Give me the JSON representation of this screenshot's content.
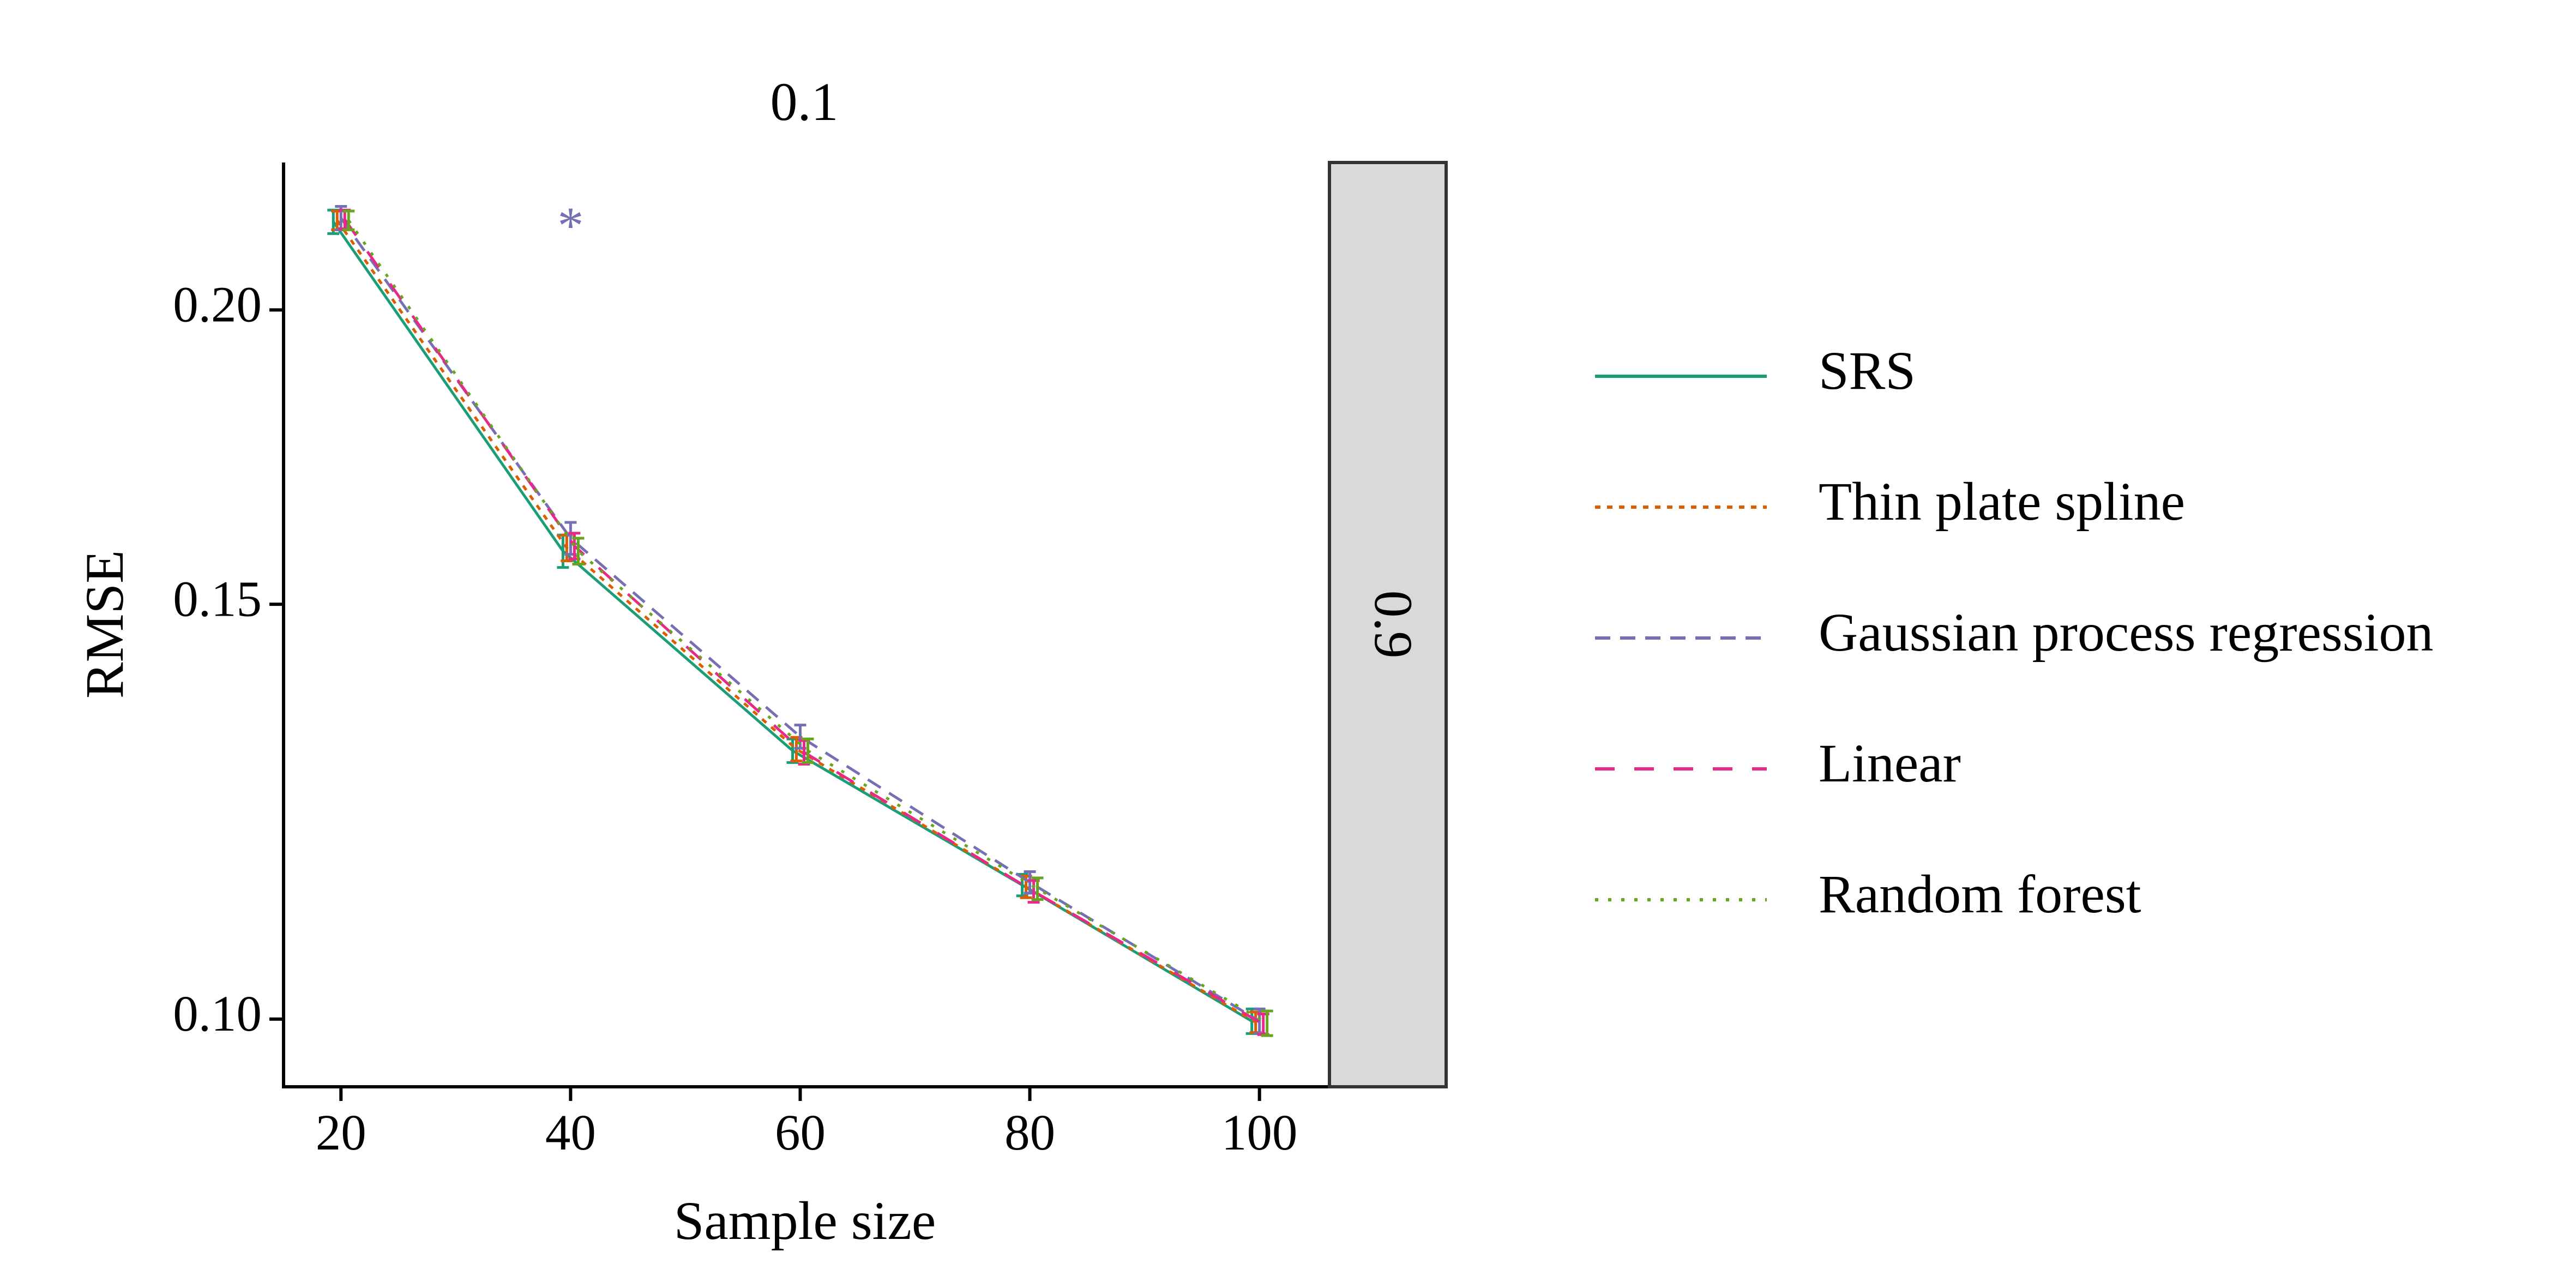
{
  "chart_data": {
    "type": "line",
    "facet_title": "0.1",
    "strip_label": "0.9",
    "xlabel": "Sample size",
    "ylabel": "RMSE",
    "x": [
      20,
      40,
      60,
      80,
      100
    ],
    "x_ticks": [
      "20",
      "40",
      "60",
      "80",
      "100"
    ],
    "y_ticks": [
      "0.10",
      "0.15",
      "0.20"
    ],
    "y_tick_values": [
      0.1,
      0.15,
      0.2
    ],
    "y_scale": "log",
    "xlim": [
      15,
      106
    ],
    "ylim": [
      0.0936,
      0.231
    ],
    "grid": false,
    "legend_position": "right",
    "series": [
      {
        "name": "SRS",
        "color": "#1b9e77",
        "linestyle": "solid",
        "values": [
          0.218,
          0.158,
          0.13,
          0.114,
          0.0998
        ],
        "err": [
          0.0025,
          0.0025,
          0.0015,
          0.0012,
          0.0012
        ]
      },
      {
        "name": "Thin plate spline",
        "color": "#d95f02",
        "linestyle": "dotted",
        "values": [
          0.2183,
          0.1585,
          0.1302,
          0.1138,
          0.0997
        ],
        "err": [
          0.002,
          0.002,
          0.0015,
          0.0012,
          0.001
        ]
      },
      {
        "name": "Gaussian process regression",
        "color": "#7570b3",
        "linestyle": "dashed",
        "values": [
          0.2188,
          0.16,
          0.1318,
          0.1143,
          0.0998
        ],
        "err": [
          0.0025,
          0.0025,
          0.0015,
          0.0012,
          0.0012
        ],
        "outlier": {
          "x": 40,
          "y": 0.216,
          "marker": "*"
        }
      },
      {
        "name": "Linear",
        "color": "#e7298a",
        "linestyle": "longdash",
        "values": [
          0.2185,
          0.1588,
          0.1298,
          0.1133,
          0.0995
        ],
        "err": [
          0.002,
          0.002,
          0.0015,
          0.0012,
          0.001
        ]
      },
      {
        "name": "Random forest",
        "color": "#66a61e",
        "linestyle": "dotted-fine",
        "values": [
          0.2183,
          0.158,
          0.13,
          0.1136,
          0.0996
        ],
        "err": [
          0.002,
          0.002,
          0.0015,
          0.0012,
          0.0012
        ]
      }
    ]
  }
}
